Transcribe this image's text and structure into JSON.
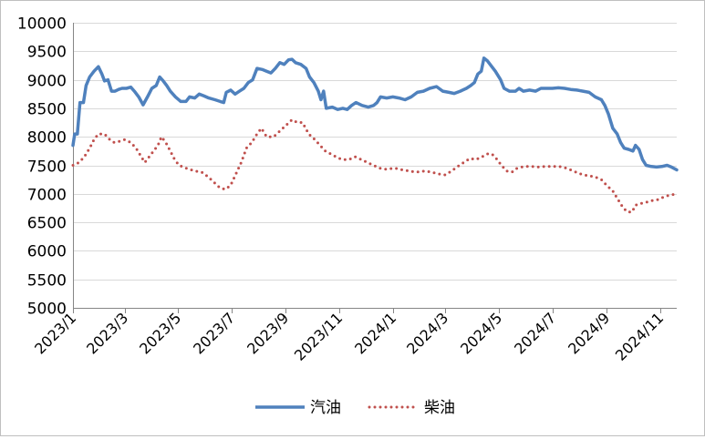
{
  "chart_data": {
    "type": "line",
    "title": "",
    "xlabel": "",
    "ylabel": "",
    "ylim": [
      5000,
      10000
    ],
    "yticks": [
      5000,
      5500,
      6000,
      6500,
      7000,
      7500,
      8000,
      8500,
      9000,
      9500,
      10000
    ],
    "x_range": [
      "2023-01-01",
      "2024-11-20"
    ],
    "xtick_labels": [
      "2023/1",
      "2023/3",
      "2023/5",
      "2023/7",
      "2023/9",
      "2023/11",
      "2024/1",
      "2024/3",
      "2024/5",
      "2024/7",
      "2024/9",
      "2024/11"
    ],
    "xtick_dates": [
      "2023-01-01",
      "2023-03-01",
      "2023-05-01",
      "2023-07-01",
      "2023-09-01",
      "2023-11-01",
      "2024-01-01",
      "2024-03-01",
      "2024-05-01",
      "2024-07-01",
      "2024-09-01",
      "2024-11-01"
    ],
    "grid": "horizontal",
    "legend": "bottom",
    "series": [
      {
        "name": "汽油",
        "color": "#4f81bd",
        "style": "solid",
        "points": [
          [
            "2023-01-01",
            7850
          ],
          [
            "2023-01-03",
            8050
          ],
          [
            "2023-01-06",
            8050
          ],
          [
            "2023-01-09",
            8600
          ],
          [
            "2023-01-13",
            8600
          ],
          [
            "2023-01-16",
            8900
          ],
          [
            "2023-01-20",
            9050
          ],
          [
            "2023-01-25",
            9150
          ],
          [
            "2023-01-30",
            9230
          ],
          [
            "2023-02-03",
            9100
          ],
          [
            "2023-02-06",
            8980
          ],
          [
            "2023-02-10",
            9000
          ],
          [
            "2023-02-14",
            8800
          ],
          [
            "2023-02-18",
            8800
          ],
          [
            "2023-02-22",
            8830
          ],
          [
            "2023-02-26",
            8850
          ],
          [
            "2023-03-03",
            8850
          ],
          [
            "2023-03-08",
            8870
          ],
          [
            "2023-03-12",
            8800
          ],
          [
            "2023-03-17",
            8700
          ],
          [
            "2023-03-22",
            8560
          ],
          [
            "2023-03-27",
            8700
          ],
          [
            "2023-04-01",
            8850
          ],
          [
            "2023-04-06",
            8900
          ],
          [
            "2023-04-10",
            9050
          ],
          [
            "2023-04-14",
            8980
          ],
          [
            "2023-04-18",
            8900
          ],
          [
            "2023-04-22",
            8800
          ],
          [
            "2023-04-28",
            8700
          ],
          [
            "2023-05-04",
            8620
          ],
          [
            "2023-05-10",
            8620
          ],
          [
            "2023-05-14",
            8700
          ],
          [
            "2023-05-20",
            8680
          ],
          [
            "2023-05-25",
            8750
          ],
          [
            "2023-05-30",
            8720
          ],
          [
            "2023-06-05",
            8680
          ],
          [
            "2023-06-12",
            8650
          ],
          [
            "2023-06-18",
            8620
          ],
          [
            "2023-06-22",
            8600
          ],
          [
            "2023-06-25",
            8780
          ],
          [
            "2023-06-30",
            8820
          ],
          [
            "2023-07-05",
            8750
          ],
          [
            "2023-07-10",
            8800
          ],
          [
            "2023-07-15",
            8850
          ],
          [
            "2023-07-20",
            8950
          ],
          [
            "2023-07-25",
            9000
          ],
          [
            "2023-07-30",
            9200
          ],
          [
            "2023-08-05",
            9180
          ],
          [
            "2023-08-10",
            9150
          ],
          [
            "2023-08-15",
            9120
          ],
          [
            "2023-08-20",
            9200
          ],
          [
            "2023-08-25",
            9300
          ],
          [
            "2023-08-30",
            9270
          ],
          [
            "2023-09-04",
            9350
          ],
          [
            "2023-09-08",
            9360
          ],
          [
            "2023-09-12",
            9300
          ],
          [
            "2023-09-18",
            9270
          ],
          [
            "2023-09-24",
            9200
          ],
          [
            "2023-09-28",
            9050
          ],
          [
            "2023-10-03",
            8950
          ],
          [
            "2023-10-08",
            8800
          ],
          [
            "2023-10-11",
            8650
          ],
          [
            "2023-10-14",
            8800
          ],
          [
            "2023-10-17",
            8500
          ],
          [
            "2023-10-24",
            8520
          ],
          [
            "2023-10-30",
            8480
          ],
          [
            "2023-11-05",
            8500
          ],
          [
            "2023-11-10",
            8480
          ],
          [
            "2023-11-15",
            8550
          ],
          [
            "2023-11-20",
            8600
          ],
          [
            "2023-11-27",
            8550
          ],
          [
            "2023-12-04",
            8520
          ],
          [
            "2023-12-10",
            8550
          ],
          [
            "2023-12-14",
            8600
          ],
          [
            "2023-12-18",
            8700
          ],
          [
            "2023-12-25",
            8680
          ],
          [
            "2024-01-01",
            8700
          ],
          [
            "2024-01-08",
            8680
          ],
          [
            "2024-01-15",
            8650
          ],
          [
            "2024-01-22",
            8700
          ],
          [
            "2024-01-29",
            8780
          ],
          [
            "2024-02-05",
            8800
          ],
          [
            "2024-02-12",
            8850
          ],
          [
            "2024-02-20",
            8880
          ],
          [
            "2024-02-27",
            8800
          ],
          [
            "2024-03-05",
            8780
          ],
          [
            "2024-03-11",
            8760
          ],
          [
            "2024-03-18",
            8800
          ],
          [
            "2024-03-25",
            8850
          ],
          [
            "2024-03-30",
            8900
          ],
          [
            "2024-04-03",
            8950
          ],
          [
            "2024-04-07",
            9100
          ],
          [
            "2024-04-11",
            9150
          ],
          [
            "2024-04-14",
            9380
          ],
          [
            "2024-04-18",
            9330
          ],
          [
            "2024-04-22",
            9250
          ],
          [
            "2024-04-27",
            9150
          ],
          [
            "2024-05-03",
            9000
          ],
          [
            "2024-05-07",
            8850
          ],
          [
            "2024-05-13",
            8800
          ],
          [
            "2024-05-20",
            8800
          ],
          [
            "2024-05-24",
            8850
          ],
          [
            "2024-05-29",
            8800
          ],
          [
            "2024-06-05",
            8820
          ],
          [
            "2024-06-12",
            8800
          ],
          [
            "2024-06-18",
            8850
          ],
          [
            "2024-06-25",
            8850
          ],
          [
            "2024-07-01",
            8850
          ],
          [
            "2024-07-08",
            8860
          ],
          [
            "2024-07-15",
            8850
          ],
          [
            "2024-07-22",
            8830
          ],
          [
            "2024-07-29",
            8820
          ],
          [
            "2024-08-05",
            8800
          ],
          [
            "2024-08-12",
            8780
          ],
          [
            "2024-08-19",
            8700
          ],
          [
            "2024-08-26",
            8650
          ],
          [
            "2024-08-30",
            8550
          ],
          [
            "2024-09-03",
            8400
          ],
          [
            "2024-09-08",
            8150
          ],
          [
            "2024-09-13",
            8050
          ],
          [
            "2024-09-17",
            7900
          ],
          [
            "2024-09-21",
            7800
          ],
          [
            "2024-09-26",
            7780
          ],
          [
            "2024-10-01",
            7750
          ],
          [
            "2024-10-04",
            7850
          ],
          [
            "2024-10-08",
            7780
          ],
          [
            "2024-10-12",
            7600
          ],
          [
            "2024-10-16",
            7500
          ],
          [
            "2024-10-22",
            7480
          ],
          [
            "2024-10-28",
            7470
          ],
          [
            "2024-11-03",
            7480
          ],
          [
            "2024-11-09",
            7500
          ],
          [
            "2024-11-14",
            7470
          ],
          [
            "2024-11-20",
            7420
          ]
        ]
      },
      {
        "name": "柴油",
        "color": "#c0504d",
        "style": "dotted",
        "points": [
          [
            "2023-01-01",
            7500
          ],
          [
            "2023-01-08",
            7550
          ],
          [
            "2023-01-14",
            7650
          ],
          [
            "2023-01-20",
            7800
          ],
          [
            "2023-01-25",
            7950
          ],
          [
            "2023-01-30",
            8050
          ],
          [
            "2023-02-06",
            8050
          ],
          [
            "2023-02-12",
            7950
          ],
          [
            "2023-02-17",
            7900
          ],
          [
            "2023-02-23",
            7920
          ],
          [
            "2023-03-01",
            7950
          ],
          [
            "2023-03-08",
            7900
          ],
          [
            "2023-03-14",
            7800
          ],
          [
            "2023-03-20",
            7650
          ],
          [
            "2023-03-24",
            7550
          ],
          [
            "2023-03-29",
            7650
          ],
          [
            "2023-04-03",
            7750
          ],
          [
            "2023-04-08",
            7850
          ],
          [
            "2023-04-12",
            8000
          ],
          [
            "2023-04-17",
            7900
          ],
          [
            "2023-04-22",
            7750
          ],
          [
            "2023-04-27",
            7600
          ],
          [
            "2023-05-02",
            7500
          ],
          [
            "2023-05-10",
            7450
          ],
          [
            "2023-05-20",
            7400
          ],
          [
            "2023-05-28",
            7380
          ],
          [
            "2023-06-04",
            7300
          ],
          [
            "2023-06-11",
            7200
          ],
          [
            "2023-06-18",
            7100
          ],
          [
            "2023-06-24",
            7080
          ],
          [
            "2023-06-30",
            7150
          ],
          [
            "2023-07-06",
            7350
          ],
          [
            "2023-07-12",
            7550
          ],
          [
            "2023-07-18",
            7800
          ],
          [
            "2023-07-24",
            7900
          ],
          [
            "2023-07-30",
            8050
          ],
          [
            "2023-08-04",
            8150
          ],
          [
            "2023-08-10",
            8000
          ],
          [
            "2023-08-18",
            8000
          ],
          [
            "2023-08-25",
            8100
          ],
          [
            "2023-09-01",
            8200
          ],
          [
            "2023-09-08",
            8300
          ],
          [
            "2023-09-14",
            8250
          ],
          [
            "2023-09-20",
            8250
          ],
          [
            "2023-09-27",
            8050
          ],
          [
            "2023-10-04",
            7950
          ],
          [
            "2023-10-10",
            7850
          ],
          [
            "2023-10-16",
            7750
          ],
          [
            "2023-10-22",
            7700
          ],
          [
            "2023-10-28",
            7650
          ],
          [
            "2023-11-04",
            7600
          ],
          [
            "2023-11-12",
            7600
          ],
          [
            "2023-11-19",
            7650
          ],
          [
            "2023-11-26",
            7600
          ],
          [
            "2023-12-03",
            7550
          ],
          [
            "2023-12-10",
            7500
          ],
          [
            "2023-12-17",
            7450
          ],
          [
            "2023-12-25",
            7430
          ],
          [
            "2024-01-03",
            7450
          ],
          [
            "2024-01-12",
            7420
          ],
          [
            "2024-01-20",
            7400
          ],
          [
            "2024-01-28",
            7380
          ],
          [
            "2024-02-06",
            7400
          ],
          [
            "2024-02-14",
            7380
          ],
          [
            "2024-02-22",
            7350
          ],
          [
            "2024-03-01",
            7330
          ],
          [
            "2024-03-08",
            7400
          ],
          [
            "2024-03-15",
            7480
          ],
          [
            "2024-03-22",
            7550
          ],
          [
            "2024-03-29",
            7620
          ],
          [
            "2024-04-05",
            7600
          ],
          [
            "2024-04-12",
            7650
          ],
          [
            "2024-04-18",
            7700
          ],
          [
            "2024-04-23",
            7700
          ],
          [
            "2024-04-28",
            7620
          ],
          [
            "2024-05-04",
            7500
          ],
          [
            "2024-05-10",
            7400
          ],
          [
            "2024-05-16",
            7380
          ],
          [
            "2024-05-22",
            7450
          ],
          [
            "2024-05-30",
            7480
          ],
          [
            "2024-06-07",
            7480
          ],
          [
            "2024-06-15",
            7470
          ],
          [
            "2024-06-23",
            7480
          ],
          [
            "2024-07-01",
            7480
          ],
          [
            "2024-07-09",
            7480
          ],
          [
            "2024-07-17",
            7450
          ],
          [
            "2024-07-25",
            7400
          ],
          [
            "2024-08-02",
            7350
          ],
          [
            "2024-08-10",
            7320
          ],
          [
            "2024-08-18",
            7300
          ],
          [
            "2024-08-26",
            7250
          ],
          [
            "2024-09-01",
            7150
          ],
          [
            "2024-09-08",
            7050
          ],
          [
            "2024-09-14",
            6900
          ],
          [
            "2024-09-20",
            6750
          ],
          [
            "2024-09-25",
            6680
          ],
          [
            "2024-09-30",
            6680
          ],
          [
            "2024-10-04",
            6800
          ],
          [
            "2024-10-10",
            6830
          ],
          [
            "2024-10-16",
            6850
          ],
          [
            "2024-10-23",
            6880
          ],
          [
            "2024-10-30",
            6900
          ],
          [
            "2024-11-06",
            6950
          ],
          [
            "2024-11-13",
            6980
          ],
          [
            "2024-11-20",
            7000
          ]
        ]
      }
    ]
  }
}
